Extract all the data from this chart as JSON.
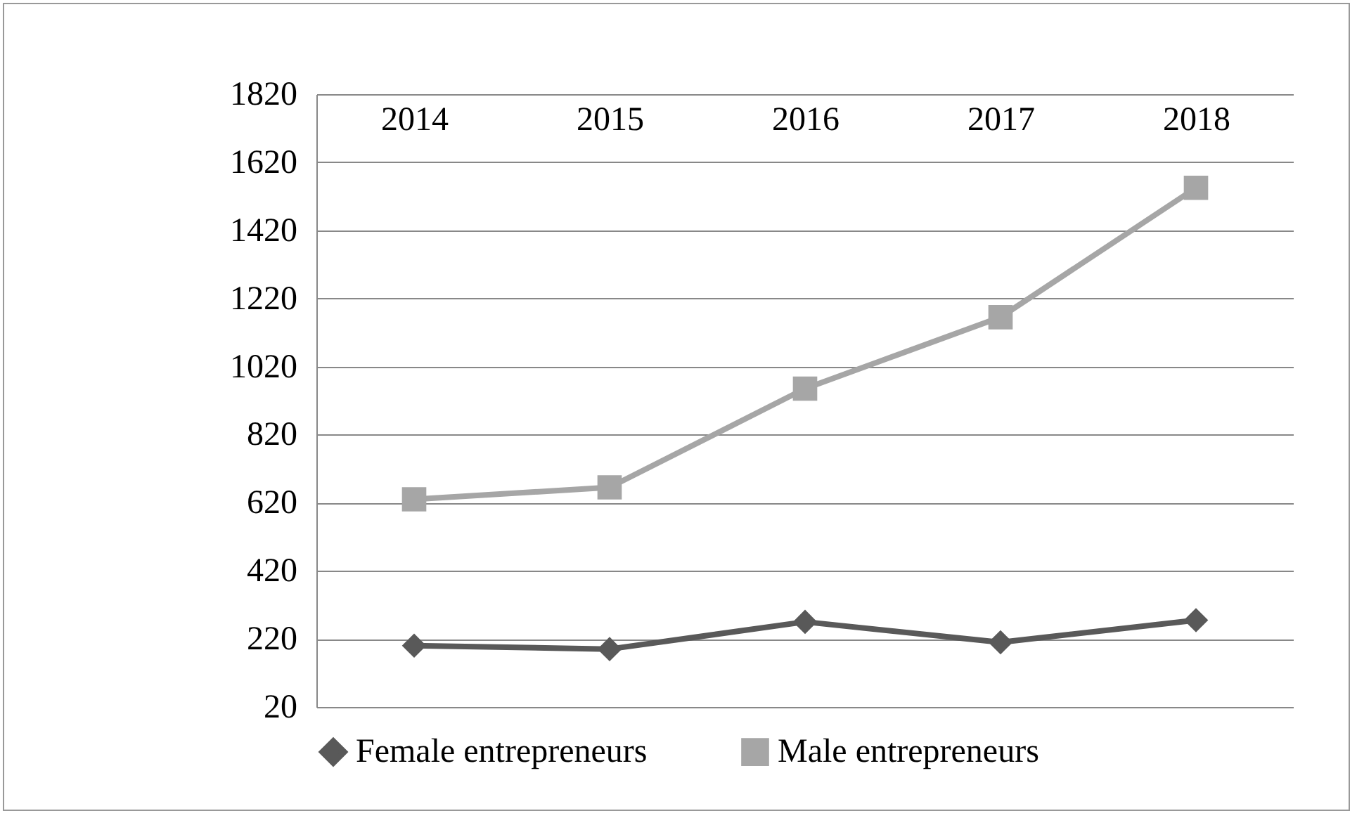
{
  "chart_data": {
    "type": "line",
    "categories": [
      "2014",
      "2015",
      "2016",
      "2017",
      "2018"
    ],
    "series": [
      {
        "name": "Female entrepreneurs",
        "color": "#595959",
        "marker": "diamond",
        "values": [
          200,
          190,
          270,
          210,
          275
        ]
      },
      {
        "name": "Male entrepreneurs",
        "color": "#a6a6a6",
        "marker": "square",
        "values": [
          630,
          665,
          955,
          1165,
          1545
        ]
      }
    ],
    "ylim": [
      20,
      1820
    ],
    "yticks": [
      20,
      220,
      420,
      620,
      820,
      1020,
      1220,
      1420,
      1620,
      1820
    ],
    "grid": "y",
    "legend": "bottom",
    "line_style": "solid"
  }
}
